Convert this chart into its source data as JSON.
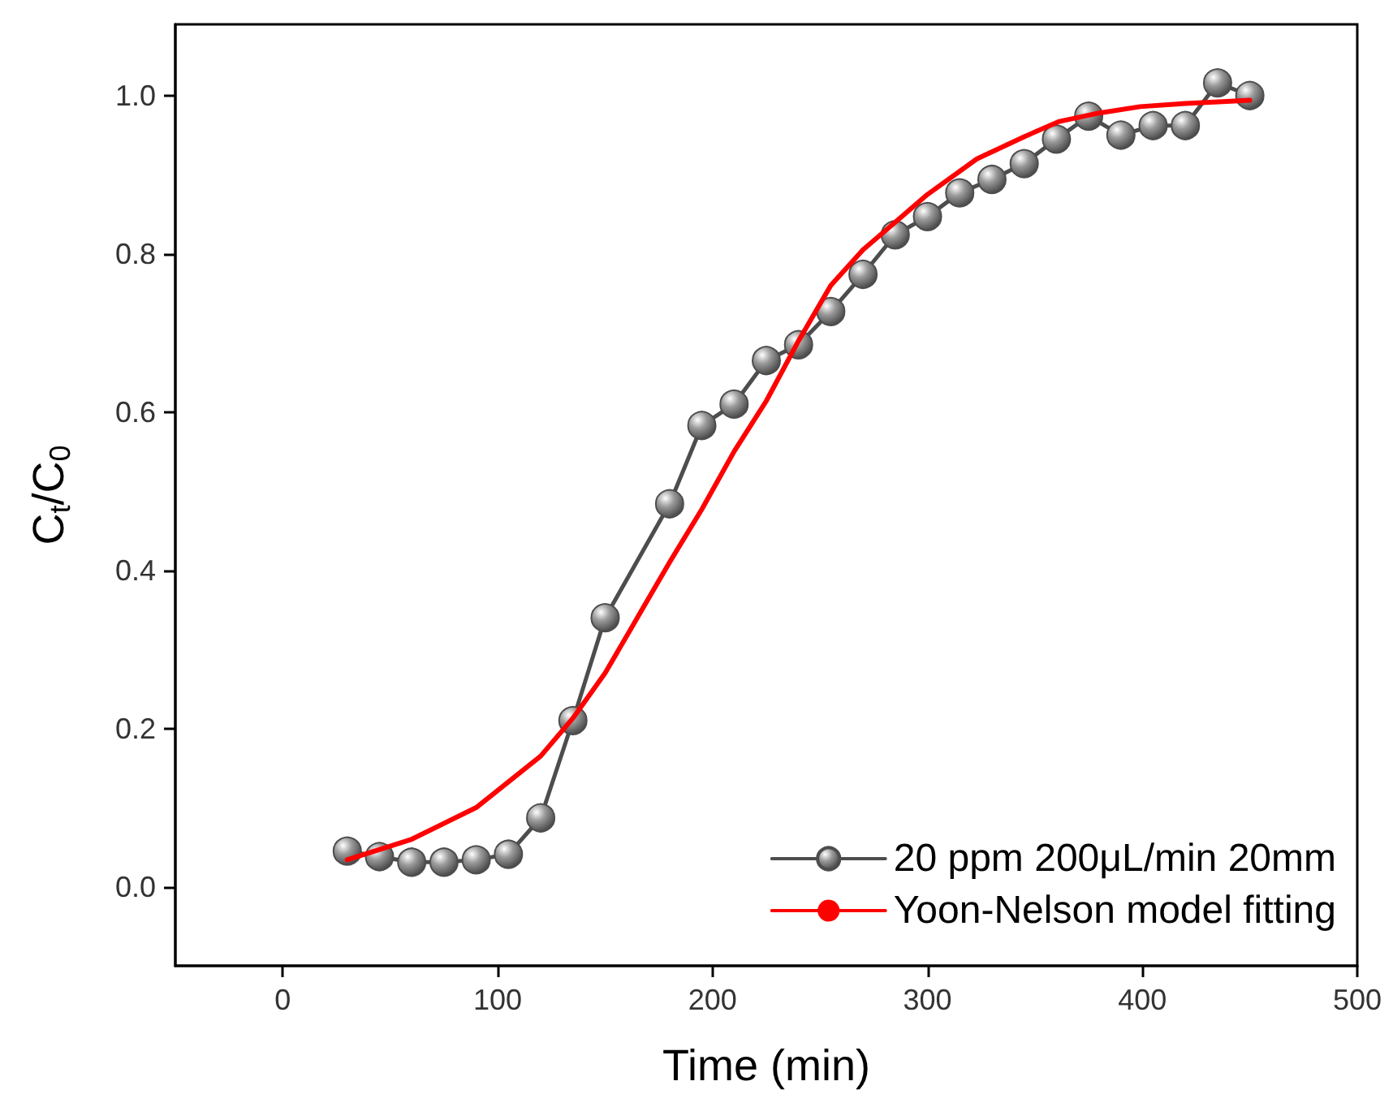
{
  "chart_data": {
    "type": "line",
    "xlabel": "Time (min)",
    "ylabel": "C$_{t}$/C$_{0}$",
    "xlim": [
      -50,
      500
    ],
    "xticks": [
      0,
      100,
      200,
      300,
      400,
      500
    ],
    "ylim": [
      -0.1,
      1.09
    ],
    "yticks": [
      {
        "value": 0,
        "label": "0.0"
      },
      {
        "value": 0.2,
        "label": "0.2"
      },
      {
        "value": 0.4,
        "label": "0.4"
      },
      {
        "value": 0.6,
        "label": "0.6"
      },
      {
        "value": 0.8,
        "label": "0.8"
      },
      {
        "value": 1,
        "label": "1.0"
      }
    ],
    "grid": false,
    "legend": "bottom right",
    "series": [
      {
        "name": "20 ppm 200μL/min 20mm",
        "color": "#4d4d4d",
        "marker": "circle",
        "line_style": "solid",
        "x": [
          30,
          45,
          60,
          75,
          90,
          105,
          120,
          135,
          150,
          180,
          195,
          210,
          225,
          240,
          255,
          270,
          285,
          300,
          315,
          330,
          345,
          360,
          375,
          390,
          405,
          420,
          435,
          450
        ],
        "values": [
          0.045,
          0.038,
          0.031,
          0.031,
          0.034,
          0.041,
          0.087,
          0.21,
          0.34,
          0.484,
          0.583,
          0.61,
          0.665,
          0.685,
          0.727,
          0.774,
          0.824,
          0.847,
          0.877,
          0.894,
          0.914,
          0.945,
          0.974,
          0.95,
          0.962,
          0.962,
          1.016,
          1.0
        ]
      },
      {
        "name": "Yoon-Nelson model fitting",
        "color": "#ff0000",
        "marker": "none",
        "line_style": "solid",
        "x": [
          30,
          60,
          90,
          120,
          135,
          150,
          165,
          180,
          195,
          210,
          225,
          240,
          255,
          270,
          285,
          300,
          323,
          345,
          361,
          380,
          399,
          420,
          450
        ],
        "values": [
          0.034,
          0.06,
          0.1,
          0.165,
          0.213,
          0.27,
          0.34,
          0.41,
          0.477,
          0.55,
          0.614,
          0.69,
          0.76,
          0.805,
          0.84,
          0.875,
          0.92,
          0.948,
          0.967,
          0.978,
          0.986,
          0.99,
          0.994
        ]
      }
    ]
  }
}
